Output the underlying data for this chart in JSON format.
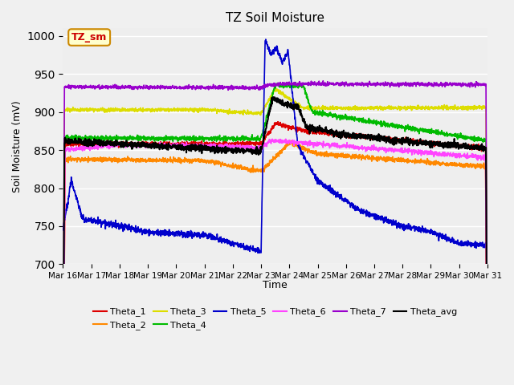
{
  "title": "TZ Soil Moisture",
  "ylabel": "Soil Moisture (mV)",
  "xlabel": "Time",
  "ylim": [
    700,
    1010
  ],
  "yticks": [
    700,
    750,
    800,
    850,
    900,
    950,
    1000
  ],
  "xtick_labels": [
    "Mar 16",
    "Mar 17",
    "Mar 18",
    "Mar 19",
    "Mar 20",
    "Mar 21",
    "Mar 22",
    "Mar 23",
    "Mar 24",
    "Mar 25",
    "Mar 26",
    "Mar 27",
    "Mar 28",
    "Mar 29",
    "Mar 30",
    "Mar 31"
  ],
  "series_colors": {
    "Theta_1": "#dd0000",
    "Theta_2": "#ff8800",
    "Theta_3": "#dddd00",
    "Theta_4": "#00bb00",
    "Theta_5": "#0000cc",
    "Theta_6": "#ff44ff",
    "Theta_7": "#9900cc",
    "Theta_avg": "#000000"
  },
  "plot_bg": "#eeeeee",
  "annotation_text": "TZ_sm",
  "annotation_color": "#cc0000",
  "annotation_bg": "#ffffcc"
}
